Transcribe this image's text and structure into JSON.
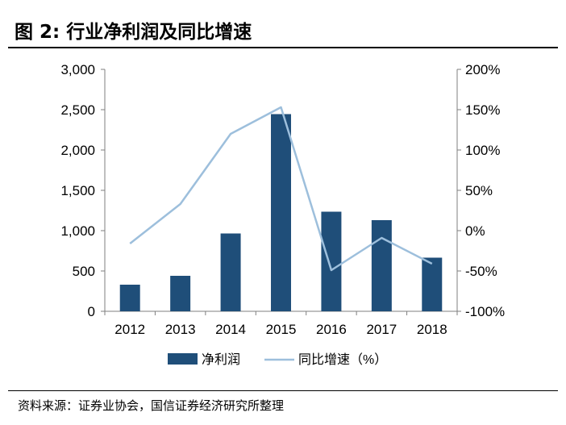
{
  "figure": {
    "title": "图 2:  行业净利润及同比增速",
    "source": "资料来源：证券业协会，国信证券经济研究所整理"
  },
  "colors": {
    "bar": "#1f4e79",
    "line": "#9dbfdc",
    "axis": "#7f7f7f"
  },
  "chart_data": {
    "type": "bar",
    "categories": [
      "2012",
      "2013",
      "2014",
      "2015",
      "2016",
      "2017",
      "2018"
    ],
    "series": [
      {
        "name": "净利润",
        "type": "bar",
        "axis": "left",
        "values": [
          330,
          440,
          965,
          2445,
          1235,
          1130,
          665
        ]
      },
      {
        "name": "同比增速（%）",
        "type": "line",
        "axis": "right",
        "values": [
          -16,
          33,
          120,
          153,
          -49,
          -9,
          -41
        ]
      }
    ],
    "y_left": {
      "ylim": [
        0,
        3000
      ],
      "ticks": [
        0,
        500,
        1000,
        1500,
        2000,
        2500,
        3000
      ],
      "tick_labels": [
        "0",
        "500",
        "1,000",
        "1,500",
        "2,000",
        "2,500",
        "3,000"
      ]
    },
    "y_right": {
      "ylim": [
        -100,
        200
      ],
      "ticks": [
        -100,
        -50,
        0,
        50,
        100,
        150,
        200
      ],
      "tick_labels": [
        "-100%",
        "-50%",
        "0%",
        "50%",
        "100%",
        "150%",
        "200%"
      ]
    },
    "grid": false,
    "legend": {
      "placement": "bottom",
      "entries": [
        {
          "label": "净利润",
          "marker": "bar"
        },
        {
          "label": "同比增速（%）",
          "marker": "line"
        }
      ]
    }
  }
}
